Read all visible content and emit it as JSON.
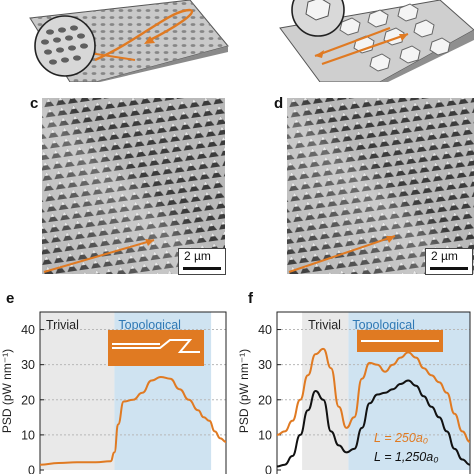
{
  "panels": {
    "c": {
      "letter": "c",
      "scale_label": "2 µm"
    },
    "d": {
      "letter": "d",
      "scale_label": "2 µm"
    },
    "e": {
      "letter": "e",
      "ylabel": "PSD (pW nm⁻¹)",
      "yticks": [
        "0",
        "10",
        "20",
        "30",
        "40"
      ],
      "region_trivial": "Trivial",
      "region_topological": "Topological"
    },
    "f": {
      "letter": "f",
      "ylabel": "PSD (pW nm⁻¹)",
      "yticks": [
        "0",
        "10",
        "20",
        "30",
        "40"
      ],
      "region_trivial": "Trivial",
      "region_topological": "Topological",
      "legend_orange": "L = 250a₀",
      "legend_black": "L = 1,250a₀"
    }
  },
  "colors": {
    "orange": "#e07a22",
    "black": "#111111",
    "trivial_bg": "#e9e9e9",
    "topological_bg": "#cfe3f1",
    "topological_text": "#2f79b5"
  },
  "chart_data": [
    {
      "type": "line",
      "panel": "e",
      "ylabel": "PSD (pW nm⁻¹)",
      "ylim": [
        0,
        45
      ],
      "yticks": [
        0,
        10,
        20,
        30,
        40
      ],
      "xlim": [
        0,
        1
      ],
      "regions": [
        {
          "label": "Trivial",
          "x": [
            0.0,
            0.4
          ]
        },
        {
          "label": "Topological",
          "x": [
            0.4,
            0.92
          ]
        }
      ],
      "series": [
        {
          "color": "orange",
          "x": [
            0.0,
            0.1,
            0.2,
            0.3,
            0.38,
            0.4,
            0.42,
            0.45,
            0.5,
            0.55,
            0.6,
            0.65,
            0.7,
            0.75,
            0.8,
            0.85,
            0.88,
            0.91,
            0.94,
            0.97,
            1.0
          ],
          "y": [
            1.5,
            2.0,
            2.2,
            2.2,
            2.5,
            5,
            13,
            19.5,
            20,
            22,
            25.5,
            26.5,
            26,
            23,
            20,
            17,
            15,
            14,
            11,
            9,
            8
          ]
        }
      ]
    },
    {
      "type": "line",
      "panel": "f",
      "ylabel": "PSD (pW nm⁻¹)",
      "ylim": [
        0,
        45
      ],
      "yticks": [
        0,
        10,
        20,
        30,
        40
      ],
      "xlim": [
        0,
        1
      ],
      "regions": [
        {
          "label": "Trivial",
          "x": [
            0.13,
            0.37
          ]
        },
        {
          "label": "Topological",
          "x": [
            0.37,
            1.0
          ]
        }
      ],
      "series": [
        {
          "name": "L = 250a₀",
          "color": "orange",
          "x": [
            0.0,
            0.04,
            0.08,
            0.12,
            0.16,
            0.2,
            0.24,
            0.28,
            0.32,
            0.36,
            0.4,
            0.44,
            0.48,
            0.52,
            0.56,
            0.6,
            0.64,
            0.68,
            0.72,
            0.76,
            0.8,
            0.84,
            0.88,
            0.92,
            0.96,
            1.0
          ],
          "y": [
            10,
            11,
            14,
            20,
            27,
            33,
            34.5,
            29,
            18,
            12,
            15,
            26,
            30.5,
            30,
            28,
            30,
            32,
            33.5,
            32,
            29,
            27,
            25,
            22,
            16,
            11,
            8
          ]
        },
        {
          "name": "L = 1,250a₀",
          "color": "black",
          "x": [
            0.0,
            0.04,
            0.08,
            0.12,
            0.16,
            0.2,
            0.24,
            0.28,
            0.32,
            0.36,
            0.4,
            0.44,
            0.48,
            0.52,
            0.56,
            0.6,
            0.64,
            0.68,
            0.72,
            0.76,
            0.8,
            0.84,
            0.88,
            0.92,
            0.96,
            1.0
          ],
          "y": [
            1,
            1.5,
            4,
            10,
            17,
            22.5,
            20,
            11,
            7,
            5,
            6,
            12,
            19,
            21.5,
            22,
            23,
            24.5,
            25.5,
            24,
            21,
            18,
            15,
            11,
            6,
            3,
            1.5
          ]
        }
      ]
    }
  ]
}
